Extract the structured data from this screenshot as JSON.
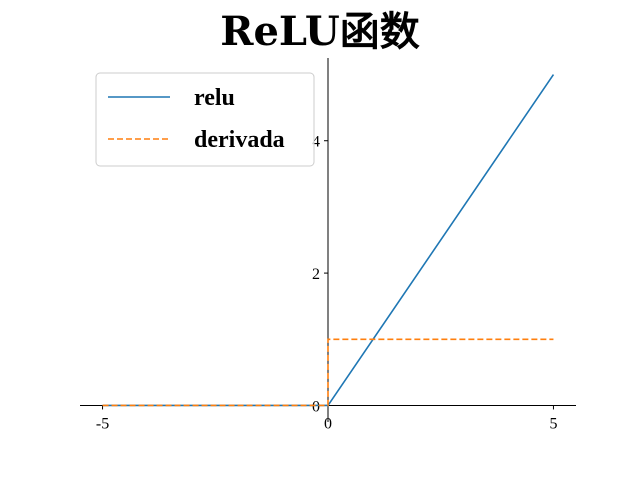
{
  "chart_data": {
    "type": "line",
    "title": "ReLU函数",
    "xlabel": "",
    "ylabel": "",
    "xlim": [
      -5.5,
      5.5
    ],
    "ylim": [
      -0.25,
      5.25
    ],
    "xticks": [
      -5,
      0,
      5
    ],
    "yticks": [
      0,
      2,
      4
    ],
    "grid": false,
    "legend_position": "top-left",
    "spines": "centered at origin",
    "series": [
      {
        "name": "relu",
        "color": "#1f77b4",
        "style": "solid",
        "x": [
          -5,
          0,
          5
        ],
        "y": [
          0,
          0,
          5
        ]
      },
      {
        "name": "derivada",
        "color": "#ff7f0e",
        "style": "dashed",
        "x": [
          -5,
          0,
          0,
          5
        ],
        "y": [
          0,
          0,
          1,
          1
        ]
      }
    ]
  }
}
